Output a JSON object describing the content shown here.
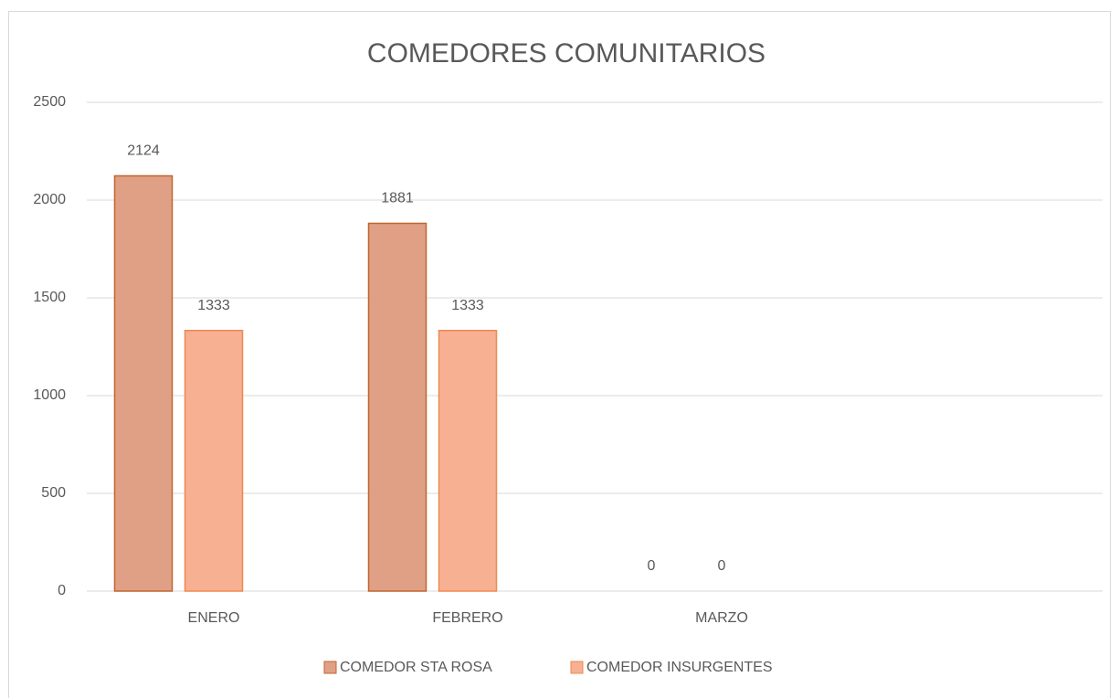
{
  "chart_data": {
    "type": "bar",
    "title": "COMEDORES COMUNITARIOS",
    "categories": [
      "ENERO",
      "FEBRERO",
      "MARZO",
      null
    ],
    "series": [
      {
        "name": "COMEDOR STA ROSA",
        "color": "#dfa086",
        "values": [
          2124,
          1881,
          0,
          null
        ]
      },
      {
        "name": "COMEDOR INSURGENTES",
        "color": "#f8b092",
        "values": [
          1333,
          1333,
          0,
          null
        ]
      }
    ],
    "ylim": [
      0,
      2500
    ],
    "yticks": [
      0,
      500,
      1000,
      1500,
      2000,
      2500
    ],
    "grid": true,
    "legend": "bottom"
  }
}
